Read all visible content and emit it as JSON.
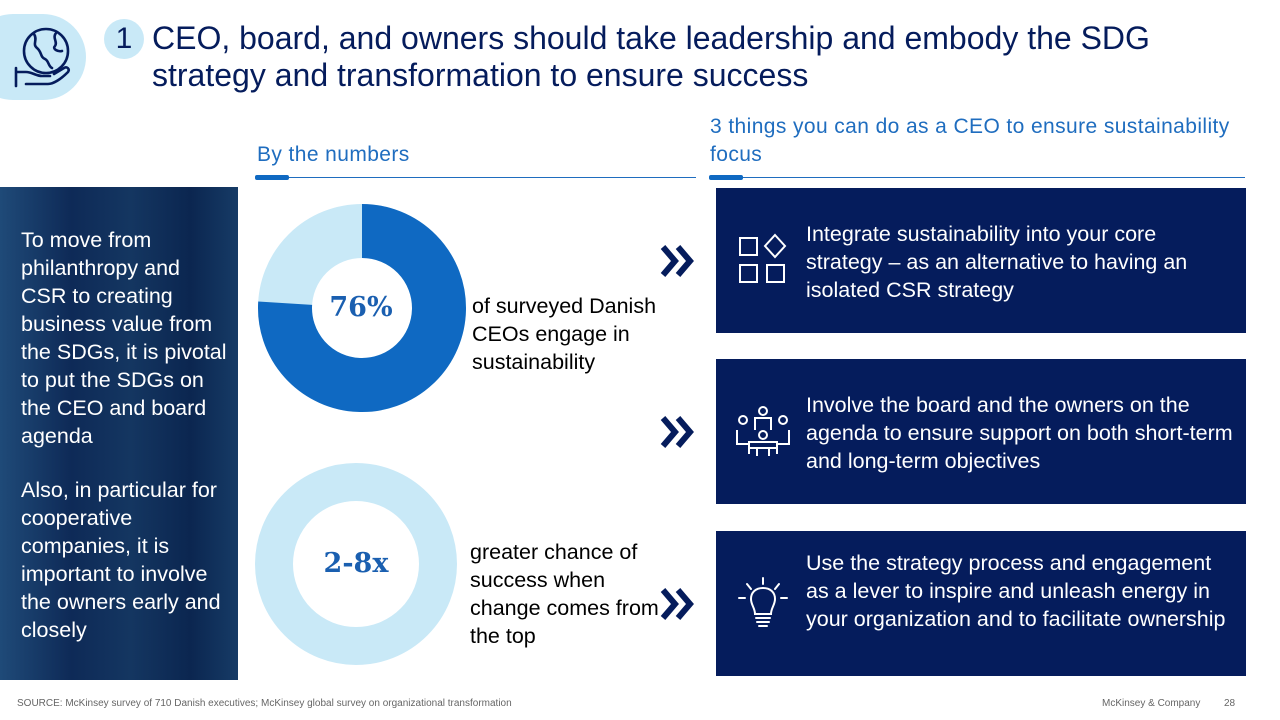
{
  "header": {
    "number": "1",
    "title": "CEO, board, and owners should take leadership and embody the SDG strategy and transformation to ensure success",
    "icon": "globe-hand-icon"
  },
  "left_panel": {
    "paragraph_1": "To move from philanthropy and CSR to creating business value from the SDGs, it is pivotal to put the SDGs on the CEO and board agenda",
    "paragraph_2": "Also, in particular for cooperative companies, it is important to involve the owners early and closely"
  },
  "numbers": {
    "heading": "By the numbers",
    "stat_1": {
      "value": "76%",
      "label": "of surveyed Danish CEOs engage in sustainability",
      "fraction": 0.76
    },
    "stat_2": {
      "value": "2-8x",
      "label": "greater chance of success when change comes from the top"
    }
  },
  "actions": {
    "heading": "3 things you can do as a CEO to ensure sustainability focus",
    "items": [
      {
        "icon": "shapes-icon",
        "text": "Integrate sustainability into your core strategy – as an alternative to having an isolated CSR strategy"
      },
      {
        "icon": "board-meeting-icon",
        "text": "Involve the board and the owners on the agenda to ensure support on both short-term and long-term objectives"
      },
      {
        "icon": "lightbulb-icon",
        "text": "Use the strategy process and engagement as a lever to inspire and unleash energy in your organization and to facilitate ownership"
      }
    ]
  },
  "colors": {
    "navy": "#051c5c",
    "blue": "#0f69c2",
    "light_blue": "#c9e9f7"
  },
  "footer": {
    "source": "SOURCE: McKinsey survey of 710 Danish executives; McKinsey global survey on organizational transformation",
    "brand": "McKinsey & Company",
    "page": "28"
  }
}
